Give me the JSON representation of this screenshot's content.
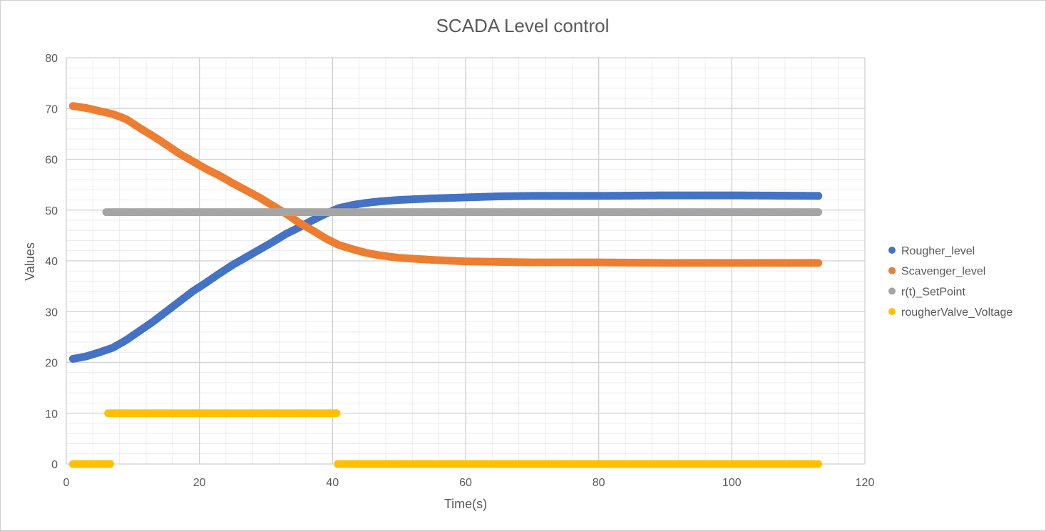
{
  "chart_data": {
    "type": "scatter",
    "title": "SCADA Level control",
    "xlabel": "Time(s)",
    "ylabel": "Values",
    "xlim": [
      0,
      120
    ],
    "ylim": [
      0,
      80
    ],
    "x_ticks": [
      0,
      20,
      40,
      60,
      80,
      100,
      120
    ],
    "y_ticks": [
      0,
      10,
      20,
      30,
      40,
      50,
      60,
      70,
      80
    ],
    "x_minor_step": 4,
    "y_minor_step": 2,
    "grid": true,
    "legend_position": "right",
    "series": [
      {
        "name": "Rougher_level",
        "color": "#4472C4",
        "points": [
          [
            1,
            20.7
          ],
          [
            3,
            21.2
          ],
          [
            5,
            22.0
          ],
          [
            7,
            22.9
          ],
          [
            9,
            24.4
          ],
          [
            11,
            26.2
          ],
          [
            13,
            28.0
          ],
          [
            15,
            30.0
          ],
          [
            17,
            32.0
          ],
          [
            19,
            34.0
          ],
          [
            21,
            35.7
          ],
          [
            23,
            37.5
          ],
          [
            25,
            39.2
          ],
          [
            27,
            40.7
          ],
          [
            29,
            42.2
          ],
          [
            31,
            43.7
          ],
          [
            33,
            45.3
          ],
          [
            35,
            46.6
          ],
          [
            37,
            48.0
          ],
          [
            39,
            49.3
          ],
          [
            41,
            50.4
          ],
          [
            43,
            51.0
          ],
          [
            45,
            51.4
          ],
          [
            47,
            51.7
          ],
          [
            50,
            52.0
          ],
          [
            55,
            52.3
          ],
          [
            60,
            52.5
          ],
          [
            65,
            52.7
          ],
          [
            70,
            52.8
          ],
          [
            80,
            52.8
          ],
          [
            90,
            52.9
          ],
          [
            100,
            52.9
          ],
          [
            113,
            52.8
          ]
        ]
      },
      {
        "name": "Scavenger_level",
        "color": "#ED7D31",
        "points": [
          [
            1,
            70.5
          ],
          [
            3,
            70.1
          ],
          [
            5,
            69.5
          ],
          [
            7,
            68.9
          ],
          [
            9,
            67.9
          ],
          [
            11,
            66.2
          ],
          [
            13,
            64.6
          ],
          [
            15,
            62.9
          ],
          [
            17,
            61.1
          ],
          [
            19,
            59.6
          ],
          [
            21,
            58.1
          ],
          [
            23,
            56.8
          ],
          [
            25,
            55.3
          ],
          [
            27,
            53.9
          ],
          [
            29,
            52.5
          ],
          [
            31,
            50.9
          ],
          [
            33,
            49.3
          ],
          [
            35,
            47.5
          ],
          [
            37,
            46.0
          ],
          [
            39,
            44.4
          ],
          [
            41,
            43.1
          ],
          [
            43,
            42.3
          ],
          [
            45,
            41.6
          ],
          [
            47,
            41.1
          ],
          [
            50,
            40.6
          ],
          [
            55,
            40.2
          ],
          [
            60,
            39.9
          ],
          [
            65,
            39.8
          ],
          [
            70,
            39.7
          ],
          [
            80,
            39.7
          ],
          [
            90,
            39.6
          ],
          [
            100,
            39.6
          ],
          [
            113,
            39.6
          ]
        ]
      },
      {
        "name": "r(t)_SetPoint",
        "color": "#A5A5A5",
        "points": [
          [
            6,
            49.6
          ],
          [
            20,
            49.6
          ],
          [
            40,
            49.6
          ],
          [
            60,
            49.6
          ],
          [
            80,
            49.6
          ],
          [
            100,
            49.6
          ],
          [
            113,
            49.6
          ]
        ]
      },
      {
        "name": "rougherValve_Voltage",
        "color": "#FFC000",
        "segments": [
          [
            [
              1,
              0
            ],
            [
              6.6,
              0
            ]
          ],
          [
            [
              6.3,
              10
            ],
            [
              40.6,
              10
            ]
          ],
          [
            [
              40.8,
              0
            ],
            [
              113,
              0
            ]
          ]
        ]
      }
    ]
  }
}
